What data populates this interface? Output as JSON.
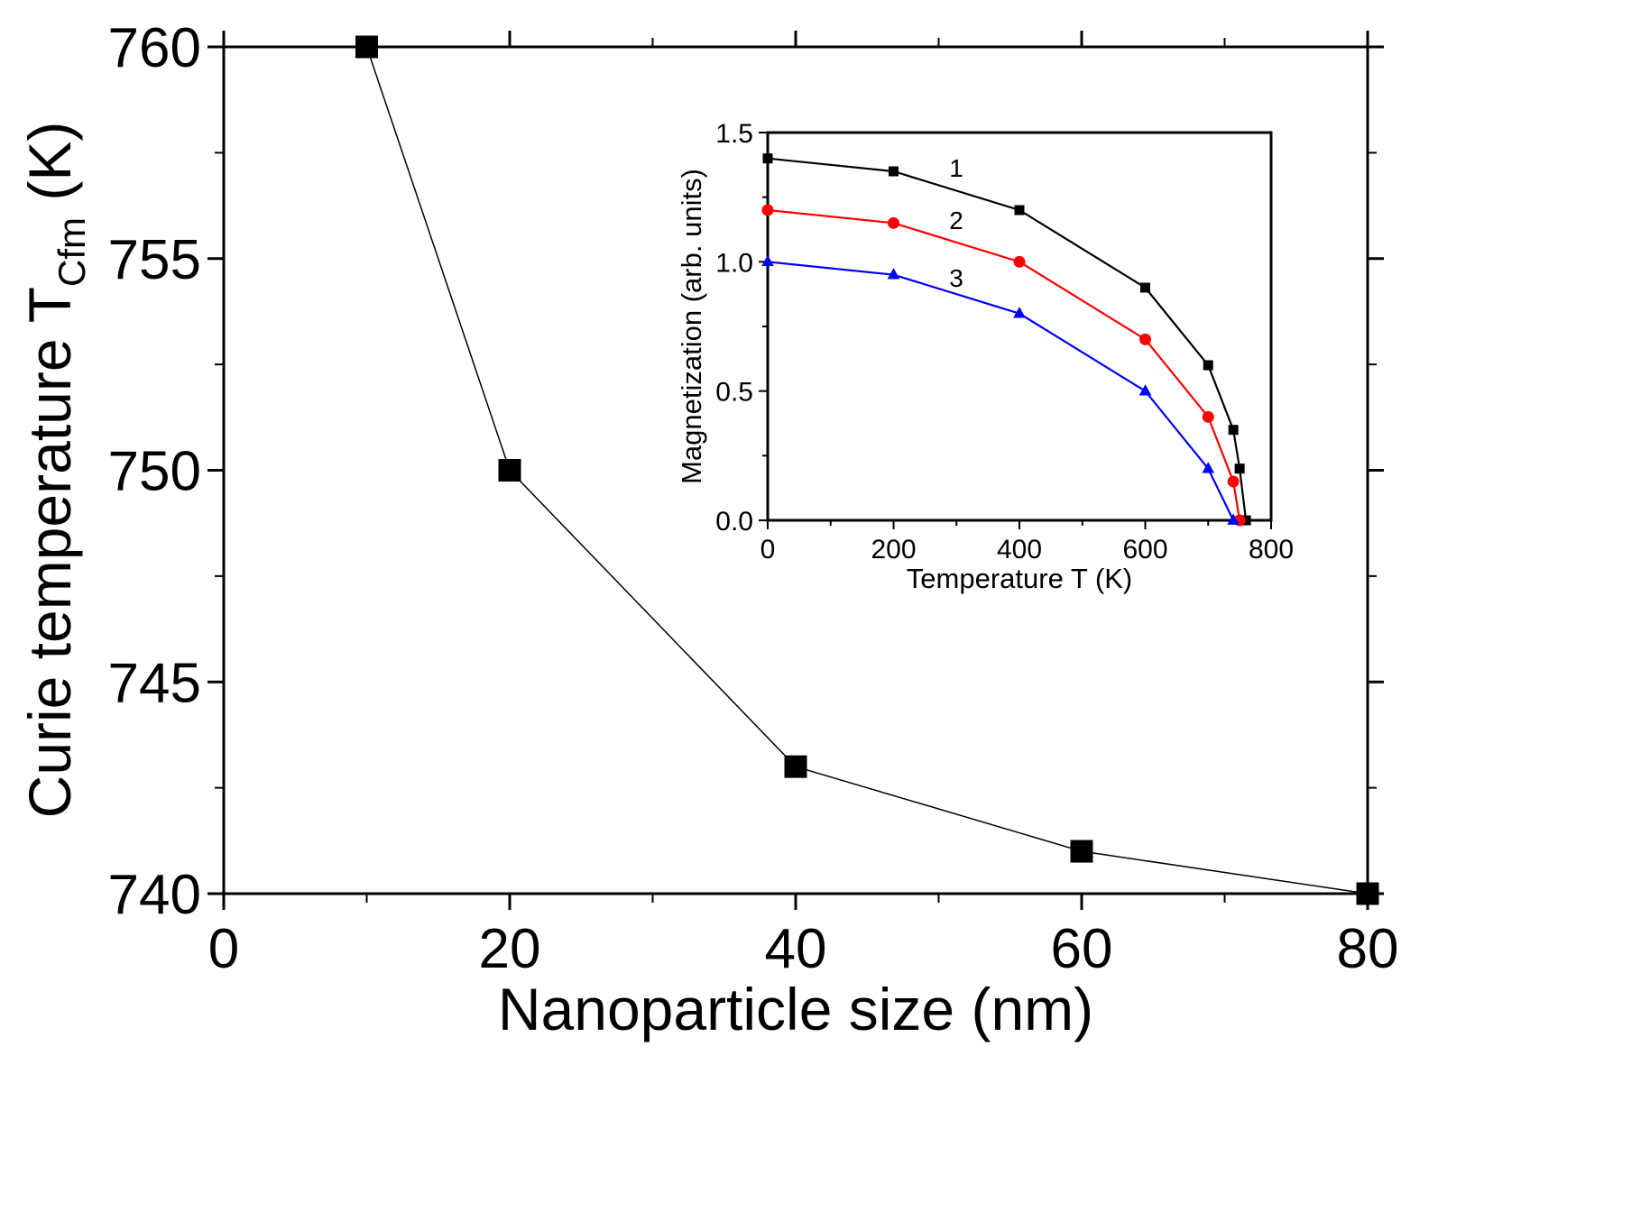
{
  "chart_data": [
    {
      "type": "line",
      "xlabel": "Nanoparticle size (nm)",
      "ylabel": {
        "text": "Curie temperature T",
        "subscript": "Cfm",
        "suffix": " (K)"
      },
      "xlim": [
        0,
        80
      ],
      "ylim": [
        740,
        760
      ],
      "x_ticks": [
        "0",
        "20",
        "40",
        "60",
        "80"
      ],
      "y_ticks": [
        "740",
        "745",
        "750",
        "755",
        "760"
      ],
      "series": [
        {
          "color": "#000000",
          "marker": "square",
          "x": [
            10,
            20,
            40,
            60,
            80
          ],
          "y": [
            760,
            750,
            743,
            741,
            740
          ]
        }
      ]
    },
    {
      "type": "line",
      "xlabel": "Temperature T (K)",
      "ylabel": "Magnetization (arb. units)",
      "xlim": [
        0,
        800
      ],
      "ylim": [
        0,
        1.5
      ],
      "x_ticks": [
        "0",
        "200",
        "400",
        "600",
        "800"
      ],
      "y_ticks": [
        "0.0",
        "0.5",
        "1.0",
        "1.5"
      ],
      "series": [
        {
          "name": "1",
          "color": "#000000",
          "marker": "square",
          "x": [
            0,
            200,
            400,
            600,
            700,
            740,
            750,
            760
          ],
          "y": [
            1.4,
            1.35,
            1.2,
            0.9,
            0.6,
            0.35,
            0.2,
            0.0
          ]
        },
        {
          "name": "2",
          "color": "#ff0000",
          "marker": "circle",
          "x": [
            0,
            200,
            400,
            600,
            700,
            740,
            750
          ],
          "y": [
            1.2,
            1.15,
            1.0,
            0.7,
            0.4,
            0.15,
            0.0
          ]
        },
        {
          "name": "3",
          "color": "#0000ff",
          "marker": "triangle",
          "x": [
            0,
            200,
            400,
            600,
            700,
            740
          ],
          "y": [
            1.0,
            0.95,
            0.8,
            0.5,
            0.2,
            0.0
          ]
        }
      ]
    }
  ]
}
